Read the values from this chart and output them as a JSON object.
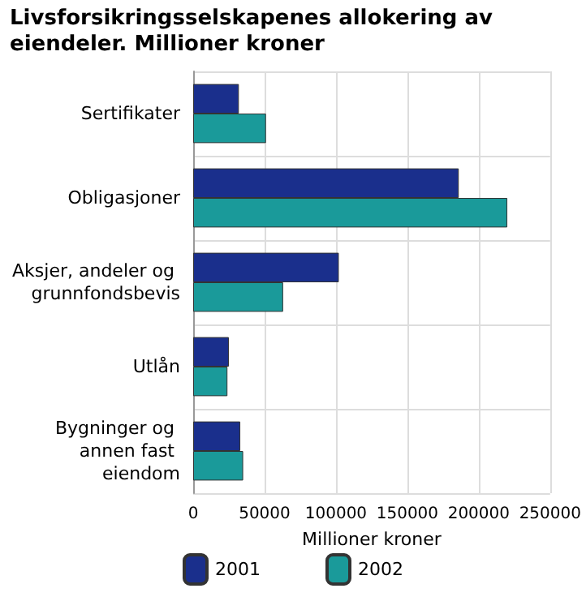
{
  "chart_data": {
    "type": "bar",
    "orientation": "horizontal",
    "title": "Livsforsikringsselskapenes allokering av eiendeler. Millioner kroner",
    "xlabel": "Millioner kroner",
    "categories": [
      "Sertifikater",
      "Obligasjoner",
      "Aksjer, andeler og grunnfondsbevis",
      "Utlån",
      "Bygninger og annen fast eiendom"
    ],
    "series": [
      {
        "name": "2001",
        "color": "#1a2f8c",
        "values": [
          32000,
          186000,
          102000,
          25000,
          33000
        ]
      },
      {
        "name": "2002",
        "color": "#1a9a9a",
        "values": [
          51000,
          220000,
          63000,
          24000,
          35000
        ]
      }
    ],
    "xlim": [
      0,
      250000
    ],
    "xticks": [
      0,
      50000,
      100000,
      150000,
      200000,
      250000
    ],
    "grid": true,
    "legend": "bottom"
  }
}
